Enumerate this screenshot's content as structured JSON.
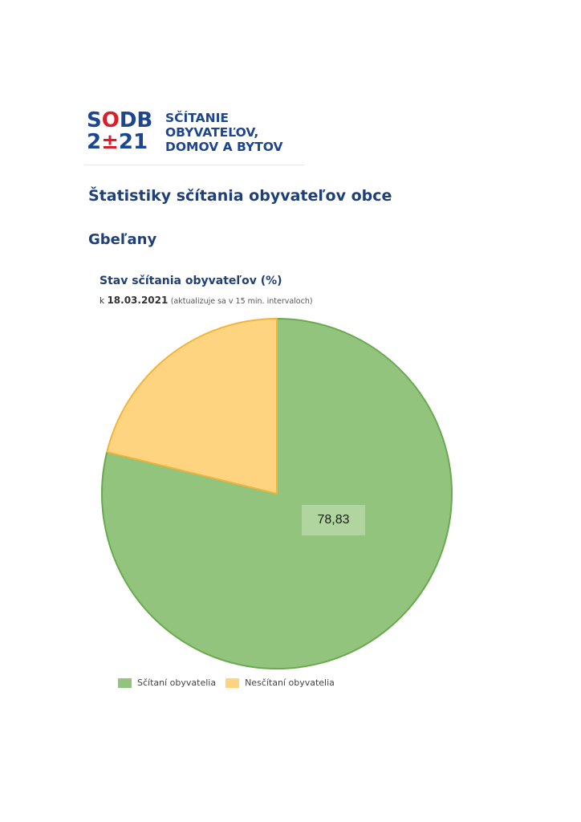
{
  "logo": {
    "line1_a": "S",
    "line1_o": "O",
    "line1_b": "DB",
    "line2_a": "2",
    "line2_pm": "±",
    "line2_b": "21",
    "words": [
      "SČÍTANIE",
      "OBYVATEĽOV,",
      "DOMOV A BYTOV"
    ],
    "colors": {
      "blue": "#1d4690",
      "red": "#d7202c"
    }
  },
  "page": {
    "title": "Štatistiky sčítania obyvateľov obce",
    "municipality": "Gbeľany"
  },
  "chart_data": {
    "type": "pie",
    "title": "Stav sčítania obyvateľov (%)",
    "subtitle_prefix": "k",
    "date": "18.03.2021",
    "subtitle_note": "(aktualizuje sa v 15 min. intervaloch)",
    "categories": [
      "Sčítaní obyvatelia",
      "Nesčítaní obyvatelia"
    ],
    "values": [
      78.83,
      21.17
    ],
    "colors": [
      "#92c47e",
      "#ffd480"
    ],
    "stroke_colors": [
      "#6aaa4f",
      "#f2b53b"
    ],
    "data_label": "78,83",
    "legend_position": "bottom-left"
  }
}
